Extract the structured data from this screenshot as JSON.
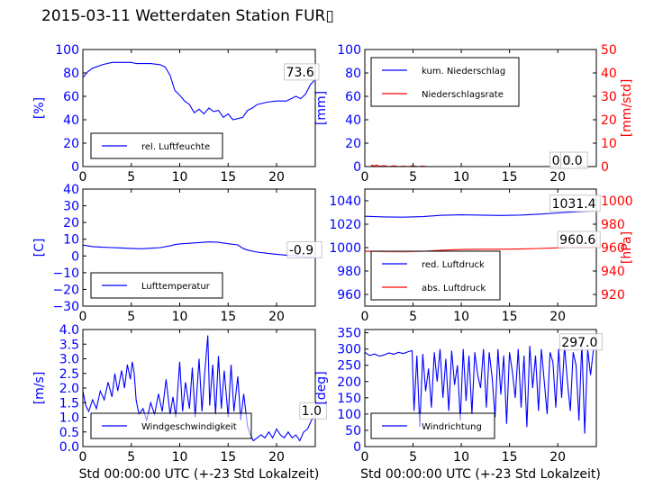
{
  "figure": {
    "title": "2015-03-11 Wetterdaten Station FUR▯"
  },
  "chart_data": [
    {
      "type": "line",
      "xlabel": "",
      "ylabel": "[%]",
      "xlim": [
        0,
        24
      ],
      "ylim": [
        0,
        100
      ],
      "xticks": [
        "0",
        "5",
        "10",
        "15",
        "20"
      ],
      "yticks": [
        "0",
        "20",
        "40",
        "60",
        "80",
        "100"
      ],
      "y_color": "#0000ff",
      "grid": false,
      "legend_position": "lower-left",
      "series": [
        {
          "name": "rel. Luftfeuchte",
          "color": "#0000ff",
          "x": [
            0,
            0.5,
            1,
            2,
            3,
            4,
            5,
            5.5,
            6,
            7,
            8,
            8.5,
            9,
            9.5,
            10,
            10.5,
            11,
            11.5,
            12,
            12.5,
            13,
            13.5,
            14,
            14.5,
            15,
            15.5,
            16,
            16.5,
            17,
            17.5,
            18,
            19,
            20,
            21,
            22,
            22.5,
            23,
            23.5,
            23.9
          ],
          "y": [
            76,
            81,
            84,
            87,
            89,
            89,
            89,
            88,
            88,
            88,
            87,
            85,
            78,
            65,
            61,
            56,
            53,
            46,
            49,
            45,
            50,
            47,
            48,
            42,
            45,
            40,
            41,
            42,
            48,
            50,
            53,
            55,
            56,
            56,
            60,
            58,
            62,
            70,
            73.6
          ]
        }
      ],
      "annotations": [
        {
          "text": "73.6",
          "x": 20.8,
          "y": 77
        }
      ]
    },
    {
      "type": "line",
      "xlabel": "",
      "ylabel": "[mm]",
      "y2label": "[mm/std]",
      "xlim": [
        0,
        24
      ],
      "ylim": [
        0,
        100
      ],
      "y2lim": [
        0,
        50
      ],
      "xticks": [
        "0",
        "5",
        "10",
        "15",
        "20"
      ],
      "yticks": [
        "0",
        "20",
        "40",
        "60",
        "80",
        "100"
      ],
      "y2ticks": [
        "0",
        "10",
        "20",
        "30",
        "40",
        "50"
      ],
      "y_color": "#0000ff",
      "y2_color": "#ff0000",
      "grid": false,
      "legend_position": "upper-left",
      "series": [
        {
          "name": "kum. Niederschlag",
          "color": "#0000ff",
          "axis": "left",
          "x": [
            0,
            24
          ],
          "y": [
            0,
            0
          ]
        },
        {
          "name": "Niederschlagsrate",
          "color": "#ff0000",
          "axis": "right",
          "x": [
            0,
            0.6,
            0.8,
            1,
            1.2,
            1.5,
            2,
            2.5,
            3,
            3.5,
            4,
            4.5,
            5,
            5.5,
            6,
            6.5,
            24
          ],
          "y": [
            0,
            0,
            0.6,
            0.2,
            0.7,
            0.1,
            0.4,
            0,
            0.3,
            0,
            0.2,
            0,
            0.3,
            0,
            0.2,
            0,
            0
          ]
        }
      ],
      "annotations": [
        {
          "text": "0.0",
          "x": 19.2,
          "y": 1.5
        },
        {
          "text": "0.0",
          "x": 20.3,
          "y": 1.5
        }
      ]
    },
    {
      "type": "line",
      "xlabel": "",
      "ylabel": "[C]",
      "xlim": [
        0,
        24
      ],
      "ylim": [
        -30,
        40
      ],
      "xticks": [
        "0",
        "5",
        "10",
        "15",
        "20"
      ],
      "yticks": [
        "−30",
        "−20",
        "−10",
        "0",
        "10",
        "20",
        "30",
        "40"
      ],
      "y_color": "#0000ff",
      "grid": false,
      "legend_position": "lower-left",
      "series": [
        {
          "name": "Lufttemperatur",
          "color": "#0000ff",
          "x": [
            0,
            1,
            2,
            3,
            4,
            5,
            6,
            7,
            8,
            9,
            9.5,
            10,
            11,
            12,
            13,
            14,
            15,
            16,
            16.5,
            17,
            18,
            19,
            20,
            21,
            22,
            23,
            24
          ],
          "y": [
            6.5,
            5.6,
            5.2,
            5.0,
            4.8,
            4.5,
            4.3,
            4.6,
            5.0,
            6.0,
            6.8,
            7.2,
            7.6,
            8.0,
            8.4,
            8.2,
            7.3,
            6.6,
            4.6,
            3.5,
            2.3,
            1.6,
            1.0,
            0.5,
            0,
            -0.5,
            -0.9
          ]
        }
      ],
      "annotations": [
        {
          "text": "-0.9",
          "x": 21.1,
          "y": 1
        }
      ]
    },
    {
      "type": "line",
      "xlabel": "",
      "ylabel": "",
      "y2label": "[hPa]",
      "xlim": [
        0,
        24
      ],
      "ylim": [
        950,
        1050
      ],
      "y2lim": [
        910,
        1010
      ],
      "xticks": [
        "0",
        "5",
        "10",
        "15",
        "20"
      ],
      "yticks": [
        "960",
        "980",
        "1000",
        "1020",
        "1040"
      ],
      "y2ticks": [
        "920",
        "940",
        "960",
        "980",
        "1000"
      ],
      "y_color": "#0000ff",
      "y2_color": "#ff0000",
      "grid": false,
      "legend_position": "lower-left",
      "series": [
        {
          "name": "red. Luftdruck",
          "color": "#0000ff",
          "axis": "left",
          "x": [
            0,
            2,
            4,
            6,
            8,
            10,
            12,
            14,
            16,
            18,
            20,
            22,
            24
          ],
          "y": [
            1026.8,
            1026.2,
            1026.0,
            1026.5,
            1027.6,
            1028.0,
            1027.8,
            1027.5,
            1027.8,
            1028.5,
            1029.6,
            1030.6,
            1031.4
          ]
        },
        {
          "name": "abs. Luftdruck",
          "color": "#ff0000",
          "axis": "right",
          "x": [
            0,
            2,
            4,
            6,
            8,
            10,
            12,
            14,
            16,
            18,
            20,
            22,
            24
          ],
          "y": [
            957.0,
            956.4,
            956.2,
            956.8,
            957.8,
            958.4,
            958.6,
            958.6,
            958.8,
            959.2,
            959.8,
            960.3,
            960.6
          ]
        }
      ],
      "annotations": [
        {
          "text": "1031.4",
          "x": 19.2,
          "y": 1034
        },
        {
          "text": "960.6",
          "x": 20.0,
          "y": 1003
        }
      ]
    },
    {
      "type": "line",
      "xlabel": "Std 00:00:00 UTC (+-23 Std Lokalzeit)",
      "ylabel": "[m/s]",
      "xlim": [
        0,
        24
      ],
      "ylim": [
        0,
        4
      ],
      "xticks": [
        "0",
        "5",
        "10",
        "15",
        "20"
      ],
      "yticks": [
        "0.0",
        "0.5",
        "1.0",
        "1.5",
        "2.0",
        "2.5",
        "3.0",
        "3.5",
        "4.0"
      ],
      "y_color": "#0000ff",
      "grid": false,
      "legend_position": "lower-left",
      "series": [
        {
          "name": "Windgeschwindigkeit",
          "color": "#0000ff",
          "x": [
            0,
            0.3,
            0.6,
            1,
            1.4,
            1.8,
            2.2,
            2.6,
            3,
            3.3,
            3.6,
            4,
            4.3,
            4.6,
            4.9,
            5.1,
            5.3,
            5.5,
            5.8,
            6.2,
            6.6,
            7,
            7.4,
            7.8,
            8.2,
            8.6,
            9,
            9.3,
            9.6,
            10,
            10.3,
            10.6,
            11,
            11.3,
            11.6,
            12,
            12.3,
            12.6,
            12.9,
            13.1,
            13.4,
            13.7,
            14,
            14.3,
            14.6,
            15,
            15.3,
            15.6,
            16,
            16.3,
            16.6,
            17,
            17.3,
            17.6,
            18,
            18.4,
            18.8,
            19.2,
            19.6,
            20,
            20.4,
            20.8,
            21.2,
            21.6,
            22,
            22.4,
            22.8,
            23.2,
            23.6,
            23.9
          ],
          "y": [
            1.9,
            1.4,
            1.2,
            1.6,
            1.3,
            1.9,
            1.6,
            2.2,
            1.7,
            2.5,
            1.9,
            2.6,
            2.0,
            2.8,
            2.3,
            2.9,
            2.5,
            1.6,
            1.1,
            1.3,
            0.9,
            1.5,
            1.1,
            1.8,
            1.2,
            2.3,
            1.1,
            1.7,
            1.0,
            2.9,
            1.2,
            2.2,
            1.3,
            2.7,
            1.0,
            3.0,
            1.2,
            2.6,
            3.8,
            1.4,
            2.8,
            1.1,
            3.1,
            1.3,
            2.6,
            1.0,
            2.8,
            1.2,
            2.4,
            0.9,
            1.8,
            0.7,
            0.4,
            0.2,
            0.3,
            0.4,
            0.3,
            0.5,
            0.3,
            0.6,
            0.4,
            0.3,
            0.5,
            0.3,
            0.4,
            0.2,
            0.5,
            0.6,
            0.9,
            1.0
          ]
        }
      ],
      "annotations": [
        {
          "text": "1.0",
          "x": 22.4,
          "y": 1.07
        }
      ]
    },
    {
      "type": "line",
      "xlabel": "Std 00:00:00 UTC (+-23 Std Lokalzeit)",
      "ylabel": "[deg]",
      "xlim": [
        0,
        24
      ],
      "ylim": [
        0,
        360
      ],
      "xticks": [
        "0",
        "5",
        "10",
        "15",
        "20"
      ],
      "yticks": [
        "0",
        "50",
        "100",
        "150",
        "200",
        "250",
        "300",
        "350"
      ],
      "y_color": "#0000ff",
      "grid": false,
      "legend_position": "lower-left",
      "series": [
        {
          "name": "Windrichtung",
          "color": "#0000ff",
          "x": [
            0,
            0.5,
            1,
            1.5,
            2,
            2.5,
            3,
            3.5,
            4,
            4.5,
            4.9,
            5.1,
            5.4,
            5.7,
            6,
            6.3,
            6.6,
            6.9,
            7.2,
            7.5,
            7.8,
            8.1,
            8.4,
            8.7,
            9,
            9.3,
            9.6,
            9.9,
            10.2,
            10.5,
            10.8,
            11.1,
            11.4,
            11.7,
            12,
            12.3,
            12.6,
            12.9,
            13.2,
            13.5,
            13.8,
            14.1,
            14.4,
            14.7,
            15,
            15.3,
            15.6,
            15.9,
            16.2,
            16.5,
            16.8,
            17.1,
            17.4,
            17.7,
            18,
            18.3,
            18.6,
            18.9,
            19.2,
            19.5,
            19.8,
            20.1,
            20.4,
            20.7,
            21,
            21.3,
            21.6,
            21.9,
            22.2,
            22.5,
            22.8,
            23.1,
            23.4,
            23.7,
            23.9
          ],
          "y": [
            290,
            280,
            285,
            278,
            282,
            288,
            284,
            290,
            286,
            292,
            295,
            110,
            280,
            60,
            285,
            170,
            240,
            120,
            290,
            200,
            300,
            150,
            270,
            110,
            295,
            190,
            250,
            80,
            300,
            140,
            280,
            100,
            290,
            220,
            180,
            300,
            120,
            290,
            210,
            90,
            300,
            160,
            280,
            70,
            290,
            230,
            150,
            300,
            120,
            280,
            60,
            310,
            180,
            280,
            110,
            300,
            200,
            100,
            290,
            260,
            120,
            300,
            150,
            310,
            200,
            110,
            290,
            250,
            80,
            320,
            40,
            300,
            220,
            300,
            297
          ]
        }
      ],
      "annotations": [
        {
          "text": "297.0",
          "x": 20.2,
          "y": 308
        }
      ]
    }
  ]
}
